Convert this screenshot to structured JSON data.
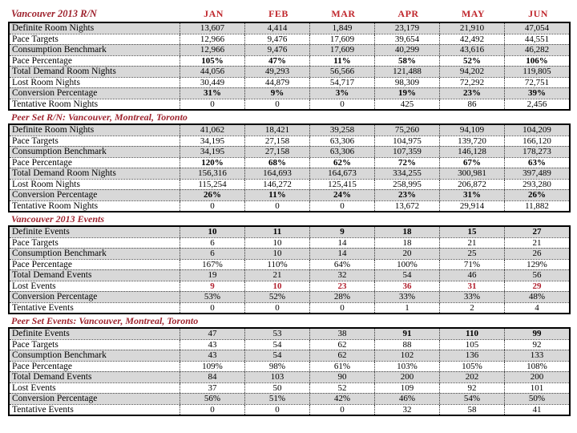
{
  "title": "Vancouver 2013 R/N",
  "months": [
    "JAN",
    "FEB",
    "MAR",
    "APR",
    "MAY",
    "JUN"
  ],
  "colors": {
    "section_red": "#9e232e",
    "month_red": "#c0272d",
    "value_red": "#b22230",
    "stripe_gray": "#d8d8d8"
  },
  "sections": [
    {
      "header": null,
      "rows": [
        {
          "label": "Definite Room Nights",
          "values": [
            "13,607",
            "4,414",
            "1,849",
            "23,179",
            "21,910",
            "47,054"
          ]
        },
        {
          "label": "Pace Targets",
          "values": [
            "12,966",
            "9,476",
            "17,609",
            "39,654",
            "42,492",
            "44,551"
          ]
        },
        {
          "label": "Consumption Benchmark",
          "values": [
            "12,966",
            "9,476",
            "17,609",
            "40,299",
            "43,616",
            "46,282"
          ]
        },
        {
          "label": "Pace Percentage",
          "values": [
            "105%",
            "47%",
            "11%",
            "58%",
            "52%",
            "106%"
          ],
          "bold": true
        },
        {
          "label": "Total Demand Room Nights",
          "values": [
            "44,056",
            "49,293",
            "56,566",
            "121,488",
            "94,202",
            "119,805"
          ]
        },
        {
          "label": "Lost Room Nights",
          "values": [
            "30,449",
            "44,879",
            "54,717",
            "98,309",
            "72,292",
            "72,751"
          ]
        },
        {
          "label": "Conversion Percentage",
          "values": [
            "31%",
            "9%",
            "3%",
            "19%",
            "23%",
            "39%"
          ],
          "bold": true
        },
        {
          "label": "Tentative Room Nights",
          "values": [
            "0",
            "0",
            "0",
            "425",
            "86",
            "2,456"
          ]
        }
      ]
    },
    {
      "header": "Peer Set R/N: Vancouver, Montreal, Toronto",
      "rows": [
        {
          "label": "Definite Room Nights",
          "values": [
            "41,062",
            "18,421",
            "39,258",
            "75,260",
            "94,109",
            "104,209"
          ]
        },
        {
          "label": "Pace Targets",
          "values": [
            "34,195",
            "27,158",
            "63,306",
            "104,975",
            "139,720",
            "166,120"
          ]
        },
        {
          "label": "Consumption Benchmark",
          "values": [
            "34,195",
            "27,158",
            "63,306",
            "107,359",
            "146,128",
            "178,273"
          ]
        },
        {
          "label": "Pace Percentage",
          "values": [
            "120%",
            "68%",
            "62%",
            "72%",
            "67%",
            "63%"
          ],
          "bold": true
        },
        {
          "label": "Total Demand Room Nights",
          "values": [
            "156,316",
            "164,693",
            "164,673",
            "334,255",
            "300,981",
            "397,489"
          ]
        },
        {
          "label": "Lost Room Nights",
          "values": [
            "115,254",
            "146,272",
            "125,415",
            "258,995",
            "206,872",
            "293,280"
          ]
        },
        {
          "label": "Conversion Percentage",
          "values": [
            "26%",
            "11%",
            "24%",
            "23%",
            "31%",
            "26%"
          ],
          "bold": true
        },
        {
          "label": "Tentative Room Nights",
          "values": [
            "0",
            "0",
            "0",
            "13,672",
            "29,914",
            "11,882"
          ]
        }
      ]
    },
    {
      "header": "Vancouver 2013 Events",
      "rows": [
        {
          "label": "Definite Events",
          "values": [
            "10",
            "11",
            "9",
            "18",
            "15",
            "27"
          ],
          "bold": true
        },
        {
          "label": "Pace Targets",
          "values": [
            "6",
            "10",
            "14",
            "18",
            "21",
            "21"
          ]
        },
        {
          "label": "Consumption Benchmark",
          "values": [
            "6",
            "10",
            "14",
            "20",
            "25",
            "26"
          ]
        },
        {
          "label": "Pace Percentage",
          "values": [
            "167%",
            "110%",
            "64%",
            "100%",
            "71%",
            "129%"
          ]
        },
        {
          "label": "Total Demand Events",
          "values": [
            "19",
            "21",
            "32",
            "54",
            "46",
            "56"
          ]
        },
        {
          "label": "Lost Events",
          "values": [
            "9",
            "10",
            "23",
            "36",
            "31",
            "29"
          ],
          "red": true
        },
        {
          "label": "Conversion Percentage",
          "values": [
            "53%",
            "52%",
            "28%",
            "33%",
            "33%",
            "48%"
          ]
        },
        {
          "label": "Tentative Events",
          "values": [
            "0",
            "0",
            "0",
            "1",
            "2",
            "4"
          ]
        }
      ]
    },
    {
      "header": "Peer Set Events: Vancouver, Montreal, Toronto",
      "rows": [
        {
          "label": "Definite Events",
          "values": [
            "47",
            "53",
            "38",
            "91",
            "110",
            "99"
          ],
          "bold_cells": [
            3,
            4,
            5
          ]
        },
        {
          "label": "Pace Targets",
          "values": [
            "43",
            "54",
            "62",
            "88",
            "105",
            "92"
          ]
        },
        {
          "label": "Consumption Benchmark",
          "values": [
            "43",
            "54",
            "62",
            "102",
            "136",
            "133"
          ]
        },
        {
          "label": "Pace Percentage",
          "values": [
            "109%",
            "98%",
            "61%",
            "103%",
            "105%",
            "108%"
          ]
        },
        {
          "label": "Total Demand Events",
          "values": [
            "84",
            "103",
            "90",
            "200",
            "202",
            "200"
          ]
        },
        {
          "label": "Lost Events",
          "values": [
            "37",
            "50",
            "52",
            "109",
            "92",
            "101"
          ]
        },
        {
          "label": "Conversion Percentage",
          "values": [
            "56%",
            "51%",
            "42%",
            "46%",
            "54%",
            "50%"
          ]
        },
        {
          "label": "Tentative Events",
          "values": [
            "0",
            "0",
            "0",
            "32",
            "58",
            "41"
          ]
        }
      ]
    }
  ]
}
